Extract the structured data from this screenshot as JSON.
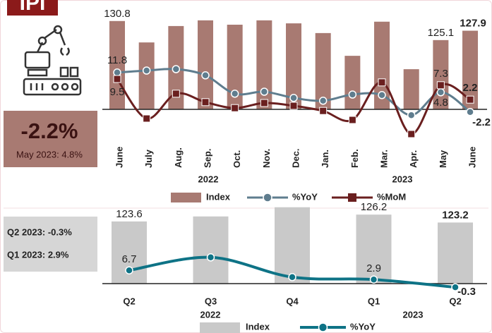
{
  "header": {
    "logo": "IPI"
  },
  "summary_monthly": {
    "value": "-2.2%",
    "note": "May 2023: 4.8%"
  },
  "summary_quarterly": [
    "Q2 2023: -0.3%",
    "Q1 2023: 2.9%"
  ],
  "chart_data": [
    {
      "type": "bar",
      "categories": [
        "June",
        "July",
        "Aug.",
        "Sep.",
        "Oct.",
        "Nov.",
        "Dec.",
        "Jan.",
        "Feb.",
        "Mar.",
        "Apr.",
        "May",
        "June"
      ],
      "x_groups": [
        "2022",
        "2023"
      ],
      "ylim": [
        104.4,
        131.6
      ],
      "y2lim": [
        -12.5,
        31
      ],
      "series": [
        {
          "name": "Index",
          "type": "bar",
          "color": "#a87a72",
          "values": [
            130.8,
            124.4,
            129.3,
            131.0,
            129.7,
            131.0,
            130.1,
            127.2,
            120.4,
            130.6,
            116.4,
            125.1,
            127.9
          ],
          "value_labels": [
            "130.8",
            null,
            null,
            null,
            null,
            null,
            null,
            null,
            null,
            null,
            null,
            "125.1",
            "127.9"
          ]
        },
        {
          "name": "%YoY",
          "type": "line",
          "axis": "y2",
          "marker": "circle",
          "color": "#5f7d8e",
          "values": [
            11.8,
            12.5,
            13.0,
            10.8,
            4.3,
            5.0,
            2.8,
            1.8,
            4.0,
            3.8,
            -3.3,
            4.8,
            -2.2
          ],
          "value_labels": [
            "11.8",
            null,
            null,
            null,
            null,
            null,
            null,
            null,
            null,
            null,
            null,
            "4.8",
            "-2.2"
          ]
        },
        {
          "name": "%MoM",
          "type": "line",
          "axis": "y2",
          "marker": "square",
          "color": "#6a1f1f",
          "values": [
            9.5,
            -4.5,
            4.3,
            1.3,
            -0.8,
            1.0,
            0,
            -1.8,
            -5.0,
            8.3,
            -10,
            7.3,
            2.2
          ],
          "value_labels": [
            "9.5",
            null,
            null,
            null,
            null,
            null,
            null,
            null,
            null,
            null,
            null,
            "7.3",
            "2.2"
          ]
        }
      ]
    },
    {
      "type": "bar",
      "categories": [
        "Q2",
        "Q3",
        "Q4",
        "Q1",
        "Q2"
      ],
      "x_groups": [
        "2022",
        "2023"
      ],
      "ylim": [
        100,
        130
      ],
      "y2lim": [
        -7,
        34
      ],
      "series": [
        {
          "name": "Index",
          "type": "bar",
          "color": "#c9c9c9",
          "values": [
            123.6,
            125.5,
            129.0,
            126.2,
            123.2
          ],
          "value_labels": [
            "123.6",
            null,
            null,
            "126.2",
            "123.2"
          ]
        },
        {
          "name": "%YoY",
          "type": "line",
          "axis": "y2",
          "marker": "circle",
          "color": "#0e7386",
          "values": [
            6.7,
            12.1,
            3.9,
            2.9,
            -0.3
          ],
          "value_labels": [
            "6.7",
            null,
            null,
            "2.9",
            "-0.3"
          ]
        }
      ]
    }
  ]
}
